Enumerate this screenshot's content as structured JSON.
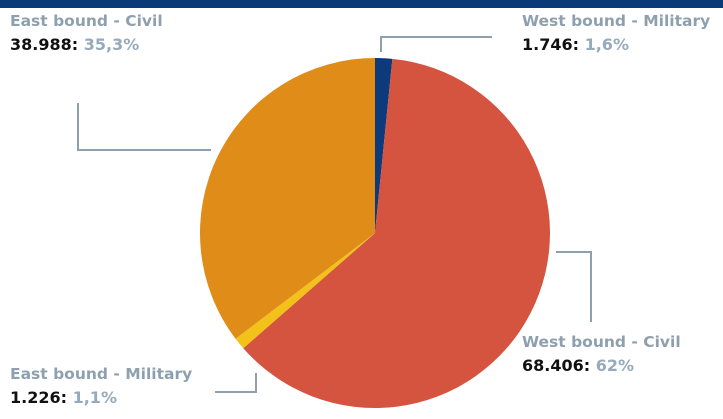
{
  "colors": {
    "header": "#0b3a78",
    "leader": "#8ea0ae",
    "text": "#111111",
    "percent": "#97aabb"
  },
  "chart_data": {
    "type": "pie",
    "slices": [
      {
        "label": "West bound - Military",
        "value": 1746,
        "value_text": "1.746",
        "percent_text": "1,6%",
        "color": "#0d3a7a"
      },
      {
        "label": "West bound - Civil",
        "value": 68406,
        "value_text": "68.406",
        "percent_text": "62%",
        "color": "#d55440"
      },
      {
        "label": "East bound - Military",
        "value": 1226,
        "value_text": "1.226",
        "percent_text": "1,1%",
        "color": "#f2c21a"
      },
      {
        "label": "East bound - Civil",
        "value": 38988,
        "value_text": "38.988",
        "percent_text": "35,3%",
        "color": "#df8c18"
      }
    ],
    "start": "top",
    "direction": "clockwise",
    "legend": "none"
  }
}
